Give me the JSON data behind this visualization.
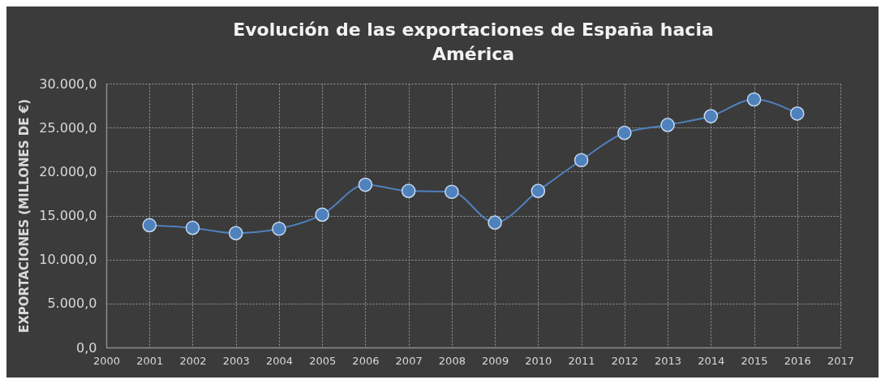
{
  "chart_data": {
    "type": "line",
    "title": "Evolución de las exportaciones de España hacia América",
    "ylabel": "EXPORTACIONES (MILLONES DE €)",
    "x": [
      2001,
      2002,
      2003,
      2004,
      2005,
      2006,
      2007,
      2008,
      2009,
      2010,
      2011,
      2012,
      2013,
      2014,
      2015,
      2016
    ],
    "series": [
      {
        "color": "#4f81bd",
        "values": [
          13900,
          13600,
          13000,
          13500,
          15100,
          18500,
          17800,
          17700,
          14200,
          17800,
          21300,
          24400,
          25300,
          26300,
          28200,
          26600
        ]
      }
    ],
    "xlim": [
      2000,
      2017
    ],
    "xticks": [
      2000,
      2001,
      2002,
      2003,
      2004,
      2005,
      2006,
      2007,
      2008,
      2009,
      2010,
      2011,
      2012,
      2013,
      2014,
      2015,
      2016,
      2017
    ],
    "ylim": [
      0,
      30000
    ],
    "yticks": [
      {
        "value": 0,
        "label": "0,0"
      },
      {
        "value": 5000,
        "label": "5.000,0"
      },
      {
        "value": 10000,
        "label": "10.000,0"
      },
      {
        "value": 15000,
        "label": "15.000,0"
      },
      {
        "value": 20000,
        "label": "20.000,0"
      },
      {
        "value": 25000,
        "label": "25.000,0"
      },
      {
        "value": 30000,
        "label": "30.000,0"
      }
    ],
    "grid": true,
    "marker": "circle",
    "line_style": "solid"
  }
}
